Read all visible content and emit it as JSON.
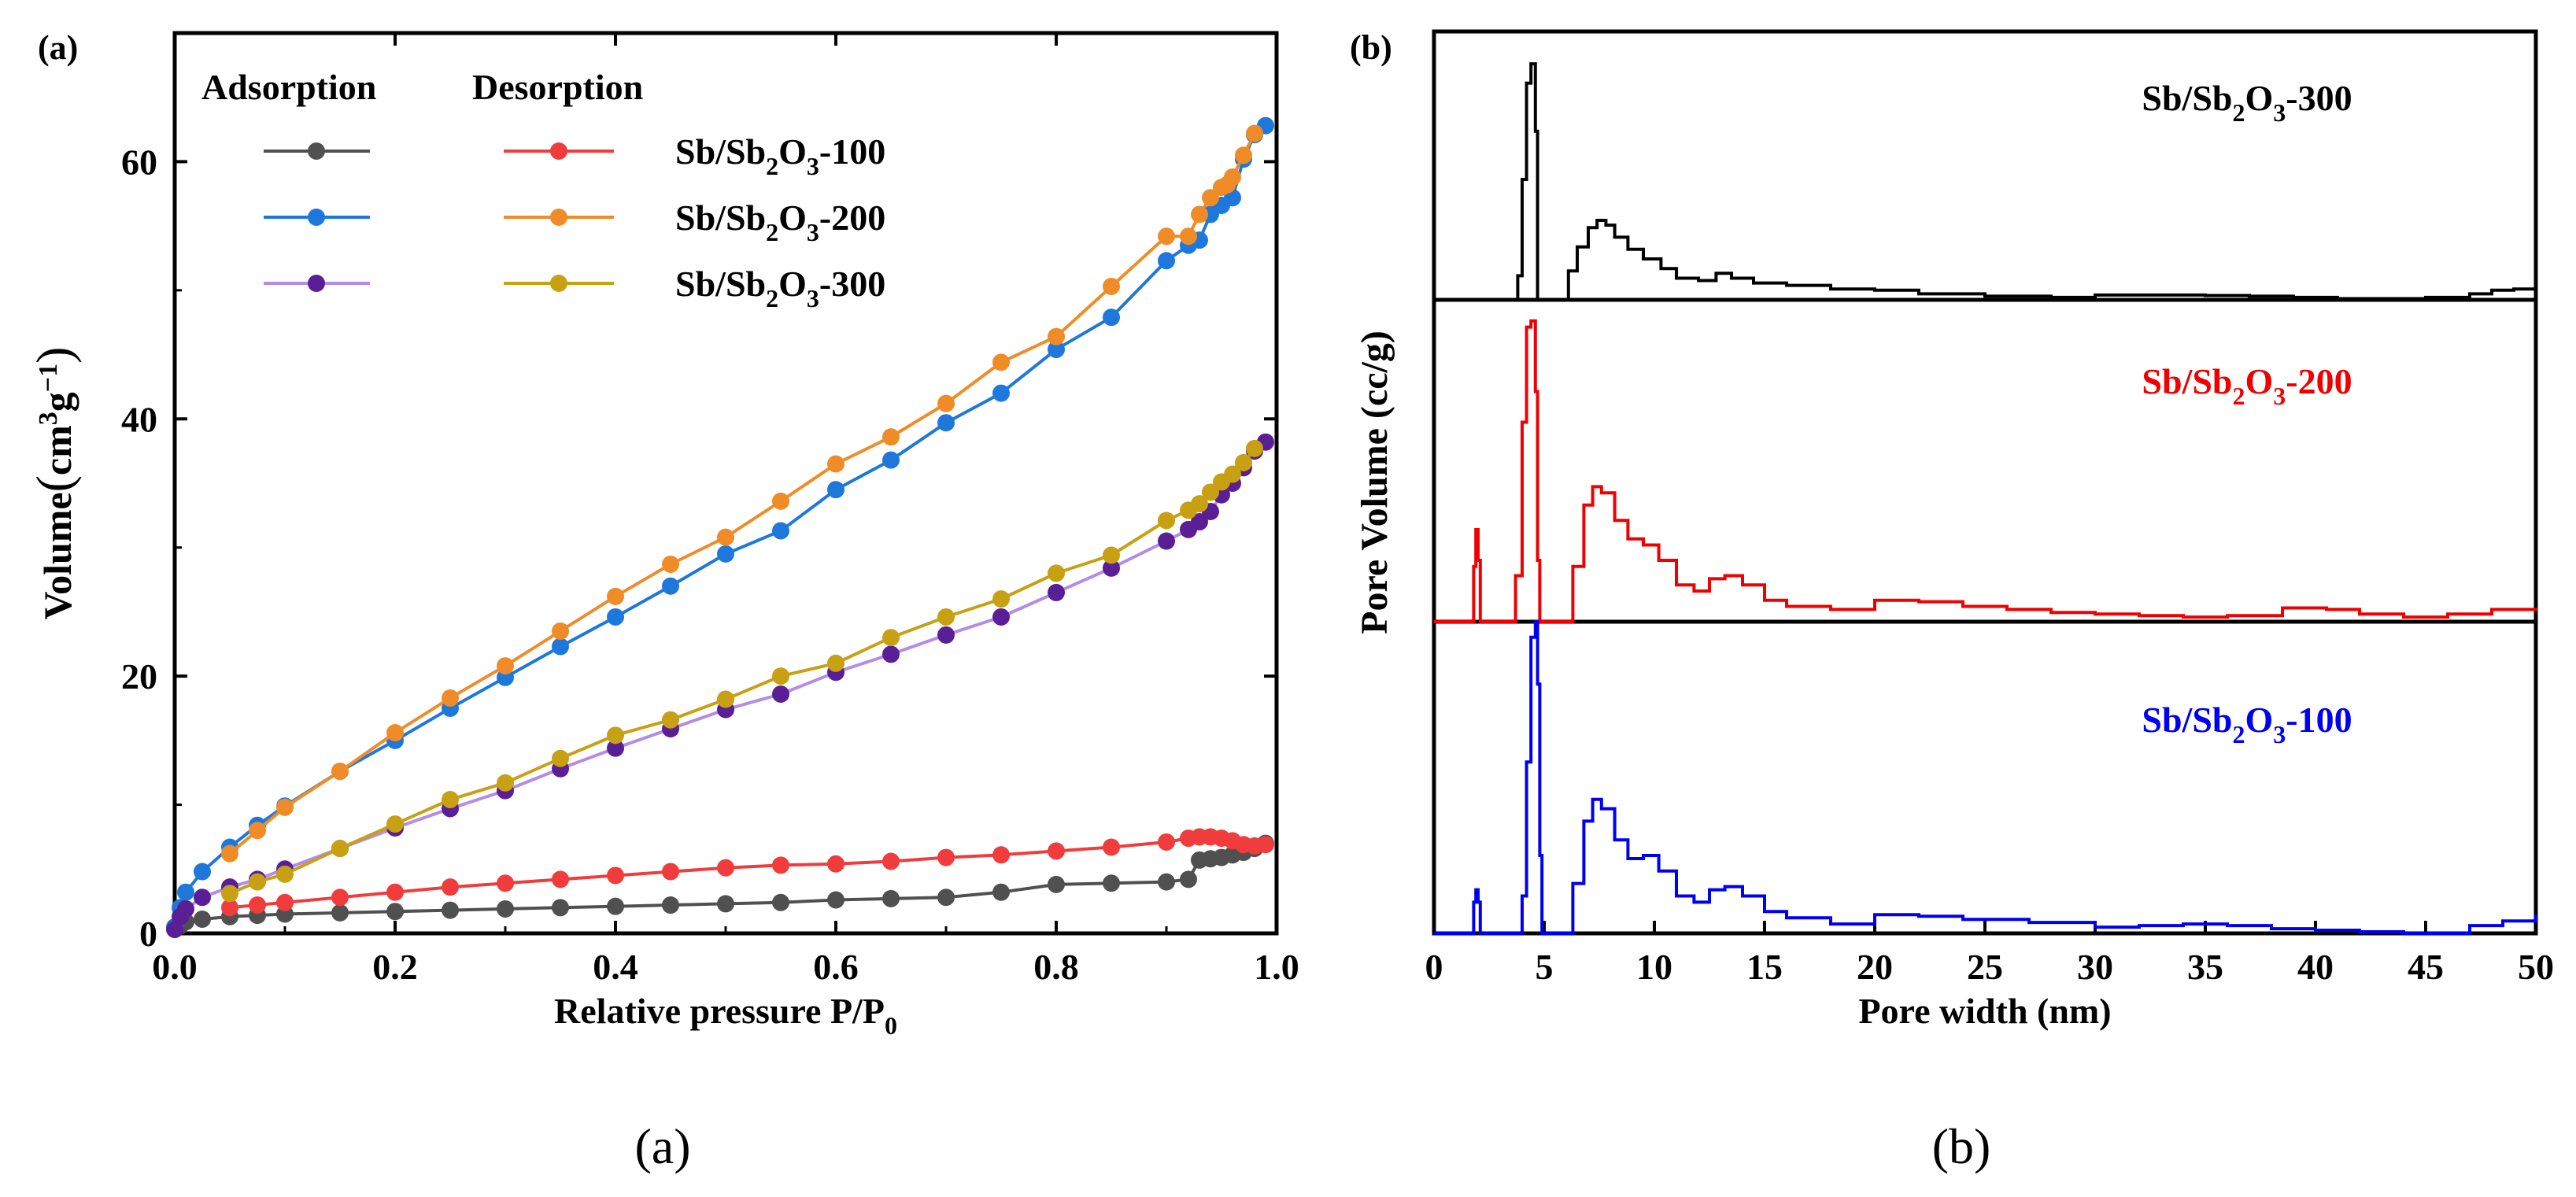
{
  "chart_data": [
    {
      "panel": "(a)",
      "type": "line",
      "caption": "(a)",
      "xlabel": "Relative pressure P/P",
      "xlabel_sub": "0",
      "ylabel_main": "Volume",
      "ylabel_unit_prefix": "cm",
      "ylabel_unit_sup": "3",
      "ylabel_unit_g": "g",
      "ylabel_unit_exp": "−1",
      "xlim": [
        0,
        1.0
      ],
      "ylim": [
        0,
        70
      ],
      "xticks": [
        0.0,
        0.2,
        0.4,
        0.6,
        0.8,
        1.0
      ],
      "xtick_labels": [
        "0.0",
        "0.2",
        "0.4",
        "0.6",
        "0.8",
        "1.0"
      ],
      "yticks": [
        0,
        20,
        40,
        60
      ],
      "ytick_labels": [
        "0",
        "20",
        "40",
        "60"
      ],
      "legend": {
        "header_adsorption": "Adsorption",
        "header_desorption": "Desorption",
        "entries": [
          {
            "name_pre": "Sb/Sb",
            "sub1": "2",
            "name_mid": "O",
            "sub2": "3",
            "name_post": "-100",
            "ads_color": "#505050",
            "des_color": "#f03c3c"
          },
          {
            "name_pre": "Sb/Sb",
            "sub1": "2",
            "name_mid": "O",
            "sub2": "3",
            "name_post": "-200",
            "ads_color": "#1e78dc",
            "des_color": "#f08c28"
          },
          {
            "name_pre": "Sb/Sb",
            "sub1": "2",
            "name_mid": "O",
            "sub2": "3",
            "name_post": "-300",
            "ads_color": "#5a1e96",
            "des_color": "#c8a014"
          }
        ]
      },
      "series": [
        {
          "name": "Sb/Sb2O3-100 adsorption",
          "color": "#505050",
          "line": "#505050",
          "x": [
            0.005,
            0.01,
            0.025,
            0.05,
            0.075,
            0.1,
            0.15,
            0.2,
            0.25,
            0.3,
            0.35,
            0.4,
            0.45,
            0.5,
            0.55,
            0.6,
            0.65,
            0.7,
            0.75,
            0.8,
            0.85,
            0.9,
            0.92,
            0.93,
            0.94,
            0.95,
            0.96,
            0.97,
            0.98,
            0.99
          ],
          "y": [
            0.6,
            0.9,
            1.1,
            1.3,
            1.4,
            1.5,
            1.6,
            1.7,
            1.8,
            1.9,
            2.0,
            2.1,
            2.2,
            2.3,
            2.4,
            2.6,
            2.7,
            2.8,
            3.2,
            3.8,
            3.9,
            4.0,
            4.2,
            5.7,
            5.8,
            5.9,
            6.1,
            6.3,
            6.6,
            7.0
          ]
        },
        {
          "name": "Sb/Sb2O3-100 desorption",
          "color": "#f03c3c",
          "line": "#f03c3c",
          "x": [
            0.99,
            0.98,
            0.97,
            0.96,
            0.95,
            0.94,
            0.93,
            0.92,
            0.9,
            0.85,
            0.8,
            0.75,
            0.7,
            0.65,
            0.6,
            0.55,
            0.5,
            0.45,
            0.4,
            0.35,
            0.3,
            0.25,
            0.2,
            0.15,
            0.1,
            0.075,
            0.05
          ],
          "y": [
            6.9,
            6.8,
            6.9,
            7.2,
            7.4,
            7.5,
            7.5,
            7.4,
            7.1,
            6.7,
            6.4,
            6.1,
            5.9,
            5.6,
            5.4,
            5.3,
            5.1,
            4.8,
            4.5,
            4.2,
            3.9,
            3.6,
            3.2,
            2.8,
            2.4,
            2.2,
            2.0
          ]
        },
        {
          "name": "Sb/Sb2O3-200 adsorption",
          "color": "#1e78dc",
          "line": "#1e78dc",
          "x": [
            0.0,
            0.005,
            0.01,
            0.025,
            0.05,
            0.075,
            0.1,
            0.15,
            0.2,
            0.25,
            0.3,
            0.35,
            0.4,
            0.45,
            0.5,
            0.55,
            0.6,
            0.65,
            0.7,
            0.75,
            0.8,
            0.85,
            0.9,
            0.92,
            0.93,
            0.94,
            0.95,
            0.96,
            0.97,
            0.98,
            0.99
          ],
          "y": [
            0.5,
            2.0,
            3.2,
            4.8,
            6.7,
            8.4,
            9.9,
            12.6,
            15.0,
            17.5,
            19.9,
            22.3,
            24.6,
            27.0,
            29.5,
            31.3,
            34.5,
            36.8,
            39.7,
            42.0,
            45.4,
            47.9,
            52.3,
            53.5,
            53.9,
            55.9,
            56.6,
            57.2,
            60.2,
            62.1,
            62.8
          ]
        },
        {
          "name": "Sb/Sb2O3-200 desorption",
          "color": "#f08c28",
          "line": "#f08c28",
          "x": [
            0.98,
            0.97,
            0.96,
            0.955,
            0.95,
            0.94,
            0.93,
            0.92,
            0.9,
            0.85,
            0.8,
            0.75,
            0.7,
            0.65,
            0.6,
            0.55,
            0.5,
            0.45,
            0.4,
            0.35,
            0.3,
            0.25,
            0.2,
            0.15,
            0.1,
            0.075,
            0.05
          ],
          "y": [
            62.2,
            60.5,
            58.8,
            58.2,
            58.0,
            57.2,
            55.9,
            54.2,
            54.2,
            50.3,
            46.4,
            44.4,
            41.2,
            38.6,
            36.5,
            33.6,
            30.8,
            28.7,
            26.2,
            23.5,
            20.8,
            18.3,
            15.6,
            12.6,
            9.8,
            8.0,
            6.2
          ]
        },
        {
          "name": "Sb/Sb2O3-300 adsorption",
          "color": "#5a1e96",
          "line": "#b48ce6",
          "x": [
            0.0,
            0.005,
            0.01,
            0.025,
            0.05,
            0.075,
            0.1,
            0.15,
            0.2,
            0.25,
            0.3,
            0.35,
            0.4,
            0.45,
            0.5,
            0.55,
            0.6,
            0.65,
            0.7,
            0.75,
            0.8,
            0.85,
            0.9,
            0.92,
            0.93,
            0.94,
            0.95,
            0.96,
            0.97,
            0.98,
            0.99
          ],
          "y": [
            0.3,
            1.3,
            1.9,
            2.8,
            3.6,
            4.2,
            5.0,
            6.6,
            8.2,
            9.7,
            11.1,
            12.8,
            14.4,
            15.9,
            17.4,
            18.6,
            20.3,
            21.7,
            23.2,
            24.6,
            26.5,
            28.4,
            30.5,
            31.4,
            32.0,
            32.8,
            34.1,
            35.0,
            36.2,
            37.5,
            38.2
          ]
        },
        {
          "name": "Sb/Sb2O3-300 desorption",
          "color": "#c8a014",
          "line": "#c8a014",
          "x": [
            0.98,
            0.97,
            0.96,
            0.95,
            0.94,
            0.93,
            0.92,
            0.9,
            0.85,
            0.8,
            0.75,
            0.7,
            0.65,
            0.6,
            0.55,
            0.5,
            0.45,
            0.4,
            0.35,
            0.3,
            0.25,
            0.2,
            0.15,
            0.1,
            0.075,
            0.05
          ],
          "y": [
            37.7,
            36.6,
            35.7,
            35.1,
            34.3,
            33.4,
            32.9,
            32.1,
            29.4,
            28.0,
            26.0,
            24.6,
            23.0,
            21.0,
            20.0,
            18.2,
            16.6,
            15.4,
            13.6,
            11.7,
            10.4,
            8.5,
            6.6,
            4.6,
            4.0,
            3.1
          ]
        }
      ]
    },
    {
      "panel": "(b)",
      "type": "line",
      "caption": "(b)",
      "xlabel": "Pore width (nm)",
      "ylabel": "Pore Volume (cc/g)",
      "xlim": [
        0,
        50
      ],
      "xticks": [
        0,
        5,
        10,
        15,
        20,
        25,
        30,
        35,
        40,
        45,
        50
      ],
      "xtick_labels": [
        "0",
        "5",
        "10",
        "15",
        "20",
        "25",
        "30",
        "35",
        "40",
        "45",
        "50"
      ],
      "ylim_each_panel": [
        0,
        1
      ],
      "series": [
        {
          "name_pre": "Sb/Sb",
          "sub1": "2",
          "name_mid": "O",
          "sub2": "3",
          "name_post": "-300",
          "color": "#000000",
          "x": [
            0,
            3.7,
            3.8,
            4.0,
            4.2,
            4.4,
            4.6,
            4.7,
            4.8,
            5.9,
            6.1,
            6.5,
            7.0,
            7.4,
            7.8,
            8.2,
            8.8,
            9.5,
            10.3,
            11.0,
            12.0,
            12.8,
            13.5,
            14.5,
            16,
            18,
            20,
            22,
            25,
            28,
            30,
            33,
            35,
            37,
            39,
            41,
            43,
            45,
            47,
            48,
            49,
            50
          ],
          "y": [
            0,
            0,
            0.1,
            0.5,
            0.9,
            0.98,
            0.7,
            0,
            0,
            0,
            0.12,
            0.22,
            0.3,
            0.33,
            0.31,
            0.26,
            0.21,
            0.17,
            0.13,
            0.09,
            0.08,
            0.11,
            0.09,
            0.07,
            0.06,
            0.045,
            0.04,
            0.025,
            0.015,
            0.01,
            0.02,
            0.02,
            0.018,
            0.015,
            0.01,
            0.005,
            0.005,
            0.01,
            0.025,
            0.04,
            0.045,
            0.045
          ]
        },
        {
          "name_pre": "Sb/Sb",
          "sub1": "2",
          "name_mid": "O",
          "sub2": "3",
          "name_post": "-200",
          "color": "#f00000",
          "x": [
            0,
            1.7,
            1.8,
            1.9,
            2.0,
            2.1,
            3.5,
            3.7,
            4.0,
            4.2,
            4.4,
            4.6,
            4.7,
            4.8,
            6.0,
            6.3,
            6.8,
            7.2,
            7.6,
            8.2,
            8.8,
            9.5,
            10.2,
            11.0,
            11.8,
            12.5,
            13.2,
            14.0,
            15.0,
            16.0,
            18.0,
            20.0,
            22.0,
            24.0,
            26.0,
            28.0,
            30.0,
            32.0,
            34.0,
            36.0,
            38.5,
            40.5,
            42.0,
            44.0,
            46.0,
            48.0,
            50.0
          ],
          "y": [
            0,
            0,
            0.18,
            0.3,
            0.2,
            0,
            0,
            0.15,
            0.65,
            0.96,
            0.98,
            0.75,
            0.2,
            0,
            0,
            0.18,
            0.38,
            0.44,
            0.42,
            0.33,
            0.27,
            0.25,
            0.2,
            0.12,
            0.1,
            0.14,
            0.15,
            0.12,
            0.07,
            0.05,
            0.04,
            0.07,
            0.065,
            0.05,
            0.04,
            0.03,
            0.025,
            0.02,
            0.015,
            0.02,
            0.045,
            0.04,
            0.025,
            0.015,
            0.025,
            0.04,
            0.045
          ]
        },
        {
          "name_pre": "Sb/Sb",
          "sub1": "2",
          "name_mid": "O",
          "sub2": "3",
          "name_post": "-100",
          "color": "#0000f0",
          "x": [
            0,
            1.7,
            1.8,
            1.9,
            2.0,
            2.1,
            3.8,
            4.0,
            4.2,
            4.4,
            4.6,
            4.7,
            4.8,
            4.9,
            6.0,
            6.3,
            6.8,
            7.2,
            7.6,
            8.2,
            8.8,
            9.5,
            10.2,
            11.0,
            11.8,
            12.5,
            13.2,
            14.0,
            15.0,
            16.0,
            18.0,
            20.0,
            22.0,
            24.0,
            27.0,
            30.0,
            32.0,
            34.0,
            36.0,
            38.0,
            40.0,
            42.0,
            44.0,
            45.5,
            47.0,
            48.5,
            50.0
          ],
          "y": [
            0,
            0,
            0.1,
            0.14,
            0.1,
            0,
            0,
            0.12,
            0.55,
            0.95,
            1.0,
            0.8,
            0.25,
            0,
            0,
            0.16,
            0.36,
            0.43,
            0.4,
            0.3,
            0.24,
            0.25,
            0.2,
            0.12,
            0.1,
            0.14,
            0.15,
            0.12,
            0.07,
            0.05,
            0.03,
            0.06,
            0.055,
            0.045,
            0.035,
            0.02,
            0.025,
            0.03,
            0.025,
            0.015,
            0.01,
            0.005,
            0,
            0,
            0.025,
            0.04,
            0.06
          ]
        }
      ]
    }
  ]
}
